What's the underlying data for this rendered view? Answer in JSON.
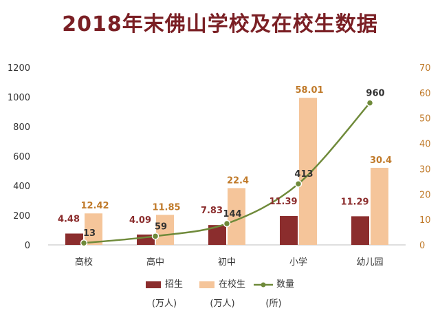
{
  "chart_data": {
    "type": "bar",
    "title": "2018年末佛山学校及在校生数据",
    "categories": [
      "高校",
      "高中",
      "初中",
      "小学",
      "幼儿园"
    ],
    "left_axis": {
      "range": [
        0,
        1200
      ],
      "ticks": [
        "0",
        "200",
        "400",
        "600",
        "800",
        "1000",
        "1200"
      ]
    },
    "right_axis": {
      "range": [
        0,
        70
      ],
      "ticks": [
        "0",
        "10",
        "20",
        "30",
        "40",
        "50",
        "60",
        "70"
      ]
    },
    "series": [
      {
        "name": "招生",
        "unit": "(万人)",
        "type": "bar",
        "axis": "right",
        "color": "#8b2d2d",
        "values": [
          4.48,
          4.09,
          7.83,
          11.39,
          11.29
        ],
        "labels": [
          "4.48",
          "4.09",
          "7.83",
          "11.39",
          "11.29"
        ]
      },
      {
        "name": "在校生",
        "unit": "(万人)",
        "type": "bar",
        "axis": "right",
        "color": "#f5c59a",
        "values": [
          12.42,
          11.85,
          22.4,
          58.01,
          30.4
        ],
        "labels": [
          "12.42",
          "11.85",
          "22.4",
          "58.01",
          "30.4"
        ]
      },
      {
        "name": "数量",
        "unit": "(所)",
        "type": "line",
        "axis": "left",
        "color": "#6f8a3a",
        "values": [
          13,
          59,
          144,
          413,
          960
        ],
        "labels": [
          "13",
          "59",
          "144",
          "413",
          "960"
        ]
      }
    ],
    "legend_position": "bottom"
  }
}
